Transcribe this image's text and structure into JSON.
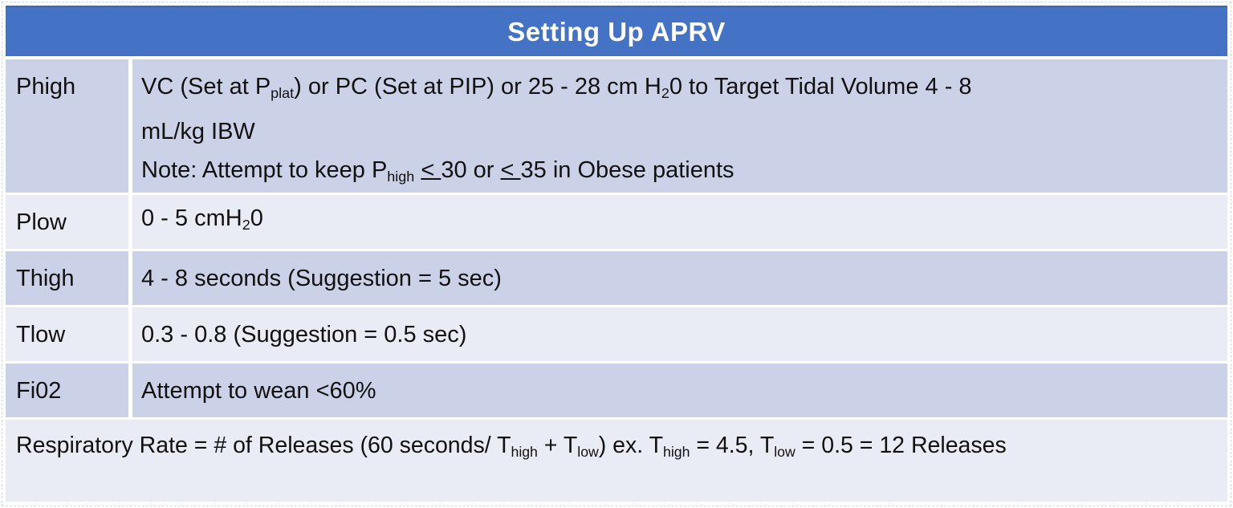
{
  "window": {
    "title": "Setting Up APRV"
  },
  "colors": {
    "header_bg": "#4472C4",
    "header_text": "#FFFFFF",
    "band_dark": "#CBD2E8",
    "band_light": "#E9EBF5",
    "separator": "#FFFFFF",
    "body_text": "#111111"
  },
  "table": {
    "header": "Setting Up APRV",
    "rows": [
      {
        "label": "Phigh",
        "lines": [
          [
            {
              "text": "VC (Set at P"
            },
            {
              "text": "plat",
              "style": "sub"
            },
            {
              "text": ") or PC (Set at PIP) or 25 - 28 cm H"
            },
            {
              "text": "2",
              "style": "sub"
            },
            {
              "text": "0 to Target Tidal Volume 4 - 8"
            }
          ],
          [
            {
              "text": "mL/kg IBW"
            }
          ],
          [
            {
              "text": "Note: Attempt to keep P"
            },
            {
              "text": "high",
              "style": "sub"
            },
            {
              "text": " "
            },
            {
              "text": "< ",
              "style": "underline"
            },
            {
              "text": "30 or "
            },
            {
              "text": "< ",
              "style": "underline"
            },
            {
              "text": "35 in Obese patients"
            }
          ]
        ]
      },
      {
        "label": "Plow",
        "lines": [
          [
            {
              "text": "0 - 5 cmH"
            },
            {
              "text": "2",
              "style": "sub"
            },
            {
              "text": "0"
            }
          ]
        ]
      },
      {
        "label": "Thigh",
        "lines": [
          [
            {
              "text": "4 - 8 seconds (Suggestion = 5 sec)"
            }
          ]
        ]
      },
      {
        "label": "Tlow",
        "lines": [
          [
            {
              "text": "0.3 - 0.8 (Suggestion = 0.5 sec)"
            }
          ]
        ]
      },
      {
        "label": "Fi02",
        "lines": [
          [
            {
              "text": "Attempt to wean <60%"
            }
          ]
        ]
      }
    ],
    "footer_segments": [
      {
        "text": "Respiratory Rate = # of Releases (60 seconds/ T"
      },
      {
        "text": "high",
        "style": "sub"
      },
      {
        "text": " + T"
      },
      {
        "text": "low",
        "style": "sub"
      },
      {
        "text": ") ex. T"
      },
      {
        "text": "high",
        "style": "sub"
      },
      {
        "text": " = 4.5, T"
      },
      {
        "text": "low",
        "style": "sub"
      },
      {
        "text": " = 0.5 = 12 Releases"
      }
    ]
  }
}
